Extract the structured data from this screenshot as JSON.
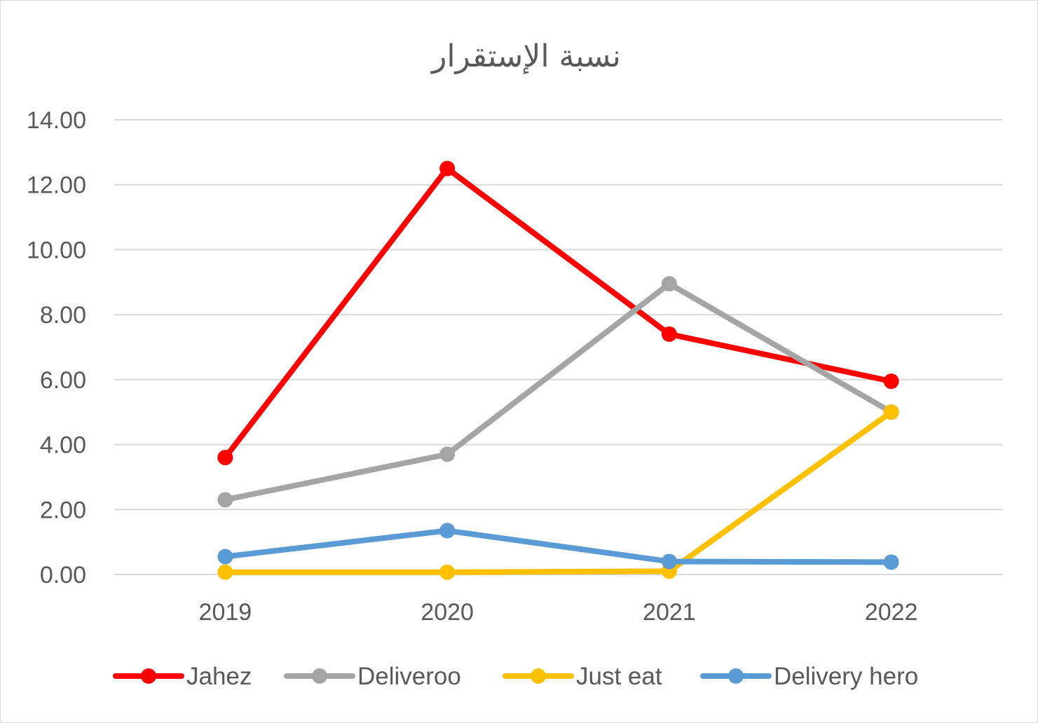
{
  "chart_data": {
    "type": "line",
    "title": "نسبة الإستقرار",
    "xlabel": "",
    "ylabel": "",
    "categories": [
      "2019",
      "2020",
      "2021",
      "2022"
    ],
    "ylim": [
      0,
      14
    ],
    "y_ticks": [
      "0.00",
      "2.00",
      "4.00",
      "6.00",
      "8.00",
      "10.00",
      "12.00",
      "14.00"
    ],
    "grid": true,
    "legend_position": "bottom",
    "series": [
      {
        "name": "Jahez",
        "color": "#ff0000",
        "values": [
          3.6,
          12.5,
          7.4,
          5.95
        ]
      },
      {
        "name": "Deliveroo",
        "color": "#a5a5a5",
        "values": [
          2.3,
          3.7,
          8.95,
          5.0
        ]
      },
      {
        "name": "Just eat",
        "color": "#ffc000",
        "values": [
          0.07,
          0.07,
          0.1,
          5.0
        ]
      },
      {
        "name": "Delivery hero",
        "color": "#5b9bd5",
        "values": [
          0.55,
          1.35,
          0.4,
          0.38
        ]
      }
    ]
  }
}
